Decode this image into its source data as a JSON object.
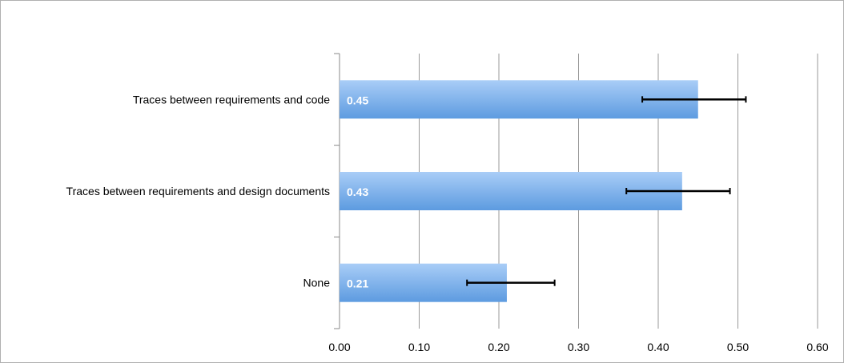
{
  "chart_data": {
    "type": "bar",
    "orientation": "horizontal",
    "categories": [
      "Traces between requirements and code",
      "Traces between requirements and design documents",
      "None"
    ],
    "values": [
      0.45,
      0.43,
      0.21
    ],
    "data_labels": [
      "0.45",
      "0.43",
      "0.21"
    ],
    "error_bars": [
      {
        "low": 0.38,
        "high": 0.51
      },
      {
        "low": 0.36,
        "high": 0.49
      },
      {
        "low": 0.16,
        "high": 0.27
      }
    ],
    "xlim": [
      0,
      0.6
    ],
    "x_ticks": [
      0,
      0.1,
      0.2,
      0.3,
      0.4,
      0.5,
      0.6
    ],
    "x_tick_labels": [
      "0.00",
      "0.10",
      "0.20",
      "0.30",
      "0.40",
      "0.50",
      "0.60"
    ],
    "grid": true,
    "legend": "none",
    "colors": {
      "bar_top": "#a9cdf7",
      "bar_bottom": "#5d9be0",
      "grid": "#999999",
      "error_bar": "#000000"
    }
  }
}
